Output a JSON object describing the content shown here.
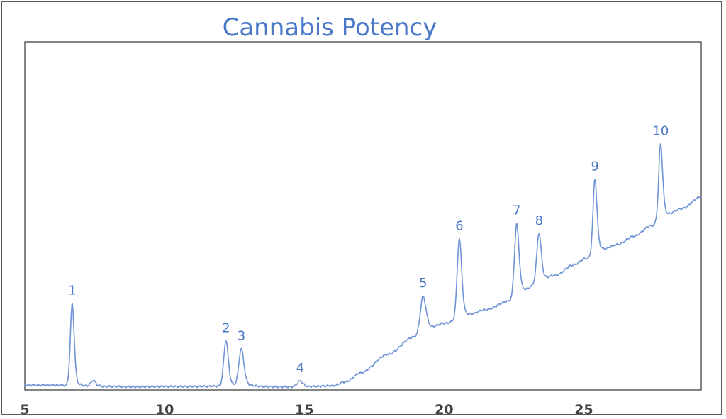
{
  "chart_data": {
    "type": "line",
    "title": "Cannabis Potency",
    "xlabel": "",
    "ylabel": "",
    "xlim": [
      5,
      29.2
    ],
    "ylim": [
      0,
      100
    ],
    "x_ticks": [
      5,
      10,
      15,
      20,
      25
    ],
    "x_tick_labels": [
      "5",
      "10",
      "15",
      "20",
      "25"
    ],
    "grid": false,
    "line_color": "#6f93d6",
    "title_color": "#4a78c8",
    "baseline": [
      [
        5.0,
        1.0
      ],
      [
        6.0,
        1.0
      ],
      [
        7.0,
        0.8
      ],
      [
        8.0,
        0.6
      ],
      [
        9.0,
        0.5
      ],
      [
        10.0,
        0.6
      ],
      [
        11.0,
        0.6
      ],
      [
        12.0,
        0.7
      ],
      [
        13.0,
        0.6
      ],
      [
        14.0,
        0.5
      ],
      [
        15.0,
        0.5
      ],
      [
        16.0,
        0.8
      ],
      [
        16.5,
        2.0
      ],
      [
        17.0,
        4.5
      ],
      [
        18.0,
        10.0
      ],
      [
        18.9,
        15.0
      ],
      [
        19.5,
        17.5
      ],
      [
        20.0,
        19.0
      ],
      [
        20.7,
        20.5
      ],
      [
        21.5,
        23.0
      ],
      [
        22.3,
        25.5
      ],
      [
        22.8,
        28.0
      ],
      [
        23.4,
        31.0
      ],
      [
        24.0,
        33.0
      ],
      [
        24.6,
        36.0
      ],
      [
        25.1,
        38.0
      ],
      [
        25.6,
        40.0
      ],
      [
        26.2,
        42.0
      ],
      [
        26.8,
        44.5
      ],
      [
        27.4,
        47.5
      ],
      [
        27.9,
        50.0
      ],
      [
        28.5,
        52.5
      ],
      [
        29.2,
        56.0
      ]
    ],
    "peaks": [
      {
        "label": "1",
        "x": 6.7,
        "height": 24.0,
        "width": 0.07,
        "tail": 0.1
      },
      {
        "label": "",
        "x": 7.45,
        "height": 1.7,
        "width": 0.08,
        "tail": 0.15
      },
      {
        "label": "2",
        "x": 12.2,
        "height": 13.5,
        "width": 0.08,
        "tail": 0.15
      },
      {
        "label": "3",
        "x": 12.75,
        "height": 11.0,
        "width": 0.09,
        "tail": 0.18
      },
      {
        "label": "4",
        "x": 14.85,
        "height": 1.7,
        "width": 0.1,
        "tail": 0.2
      },
      {
        "label": "5",
        "x": 19.25,
        "height": 10.5,
        "width": 0.1,
        "tail": 0.2
      },
      {
        "label": "6",
        "x": 20.55,
        "height": 23.5,
        "width": 0.08,
        "tail": 0.18
      },
      {
        "label": "7",
        "x": 22.6,
        "height": 21.0,
        "width": 0.08,
        "tail": 0.16
      },
      {
        "label": "8",
        "x": 23.4,
        "height": 14.5,
        "width": 0.08,
        "tail": 0.16
      },
      {
        "label": "9",
        "x": 25.4,
        "height": 22.0,
        "width": 0.07,
        "tail": 0.15
      },
      {
        "label": "10",
        "x": 27.75,
        "height": 22.0,
        "width": 0.07,
        "tail": 0.15
      }
    ]
  }
}
